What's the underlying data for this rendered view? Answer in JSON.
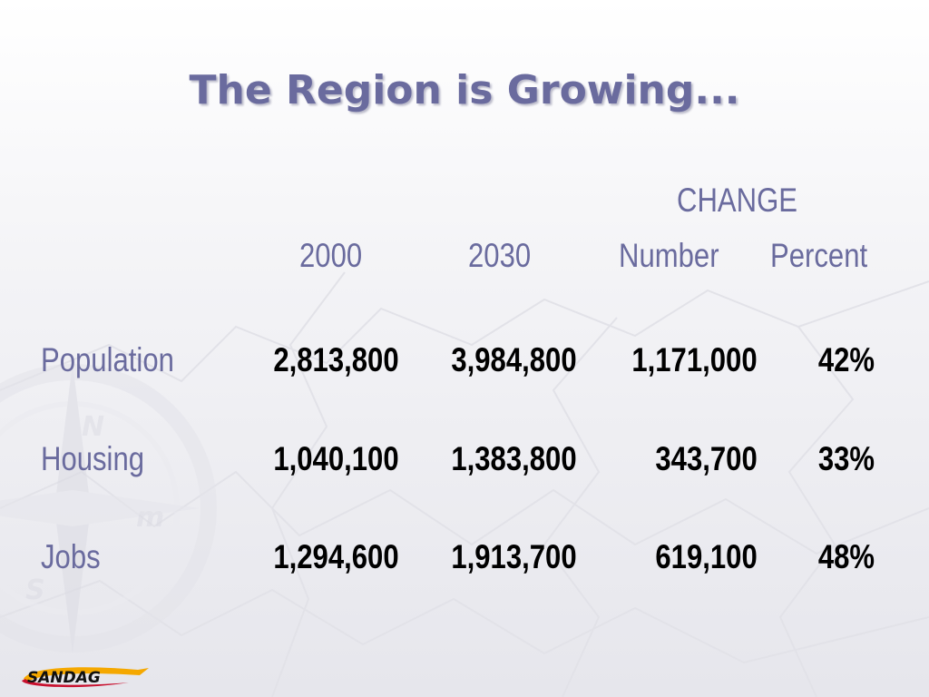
{
  "slide": {
    "title": "The Region is Growing...",
    "headers": {
      "change_group": "CHANGE",
      "year_2000": "2000",
      "year_2030": "2030",
      "number": "Number",
      "percent": "Percent"
    },
    "rows": [
      {
        "label": "Population",
        "y2000": "2,813,800",
        "y2030": "3,984,800",
        "number": "1,171,000",
        "percent": "42%"
      },
      {
        "label": "Housing",
        "y2000": "1,040,100",
        "y2030": "1,383,800",
        "number": "343,700",
        "percent": "33%"
      },
      {
        "label": "Jobs",
        "y2000": "1,294,600",
        "y2030": "1,913,700",
        "number": "619,100",
        "percent": "48%"
      }
    ],
    "logo_text": "SANDAG"
  },
  "colors": {
    "heading": "#6a6b9e",
    "values": "#000000",
    "logo_swoosh": "#f5a800"
  },
  "icons": [
    "compass-rose-icon"
  ]
}
